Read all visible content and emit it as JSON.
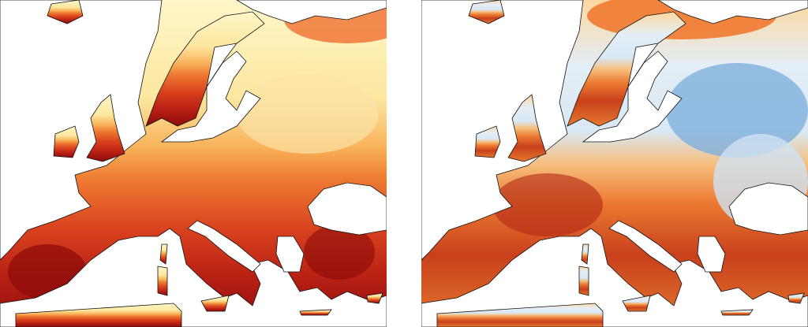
{
  "panels": [
    {
      "id": "left",
      "gradient": [
        {
          "offset": 0.0,
          "color": "#fef6c8"
        },
        {
          "offset": 0.3,
          "color": "#fde7a0"
        },
        {
          "offset": 0.45,
          "color": "#f8b25a"
        },
        {
          "offset": 0.55,
          "color": "#ee7a32"
        },
        {
          "offset": 0.7,
          "color": "#d9421e"
        },
        {
          "offset": 0.85,
          "color": "#b82014"
        },
        {
          "offset": 1.0,
          "color": "#8e0c0c"
        }
      ],
      "patches": [
        {
          "color": "#f07030",
          "opacity": 0.8
        },
        {
          "color": "#fbe3a6",
          "opacity": 0.7
        },
        {
          "color": "#8a0a0a",
          "opacity": 0.7
        },
        {
          "color": "#8a0a0a",
          "opacity": 0.6
        }
      ]
    },
    {
      "id": "right",
      "gradient": [
        {
          "offset": 0.0,
          "color": "#fbd8a0"
        },
        {
          "offset": 0.2,
          "color": "#e4eef6"
        },
        {
          "offset": 0.4,
          "color": "#d8e8f4"
        },
        {
          "offset": 0.5,
          "color": "#f6c080"
        },
        {
          "offset": 0.62,
          "color": "#ec7a32"
        },
        {
          "offset": 0.78,
          "color": "#c8401c"
        },
        {
          "offset": 1.0,
          "color": "#e4782e"
        }
      ],
      "patches": [
        {
          "color": "#f07a30",
          "opacity": 0.9
        },
        {
          "color": "#7fb0dc",
          "opacity": 0.8
        },
        {
          "color": "#b02814",
          "opacity": 0.6
        },
        {
          "color": "#cfe2f2",
          "opacity": 0.8
        }
      ]
    }
  ],
  "colors": {
    "sea": "#ffffff",
    "coastline": "#111111"
  }
}
